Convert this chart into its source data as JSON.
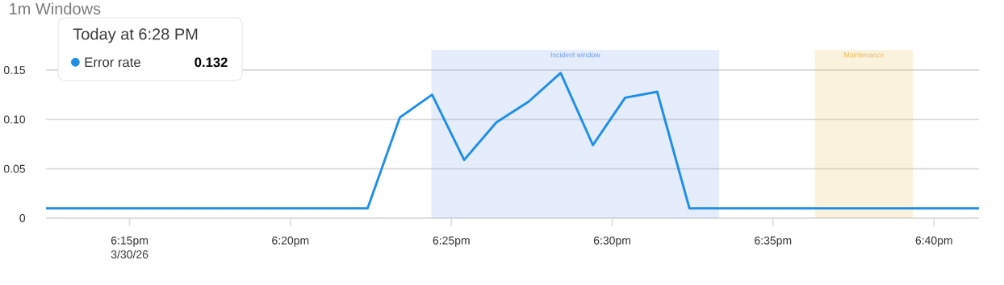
{
  "chart_data": {
    "type": "line",
    "title": "1m Windows",
    "series": [
      {
        "name": "Error rate",
        "color": "#1e8ee8",
        "x": [
          18.2067,
          18.3733,
          18.39,
          18.4067,
          18.4233,
          18.44,
          18.4567,
          18.4733,
          18.49,
          18.5067,
          18.5233,
          18.54,
          18.69
        ],
        "values": [
          0.01,
          0.01,
          0.102,
          0.125,
          0.059,
          0.097,
          0.118,
          0.147,
          0.074,
          0.122,
          0.128,
          0.01,
          0.01
        ]
      }
    ],
    "xlim": [
      18.2067,
      18.69
    ],
    "xticks": [
      {
        "value": 18.25,
        "label": "6:15pm"
      },
      {
        "value": 18.3333,
        "label": "6:20pm"
      },
      {
        "value": 18.4167,
        "label": "6:25pm"
      },
      {
        "value": 18.5,
        "label": "6:30pm"
      },
      {
        "value": 18.5833,
        "label": "6:35pm"
      },
      {
        "value": 18.6667,
        "label": "6:40pm"
      }
    ],
    "ylim": [
      0,
      0.15
    ],
    "yticks": [
      0,
      0.05,
      {
        "value": 0.1,
        "label": "0.10"
      },
      0.15
    ],
    "grid": "y",
    "legend": "top left",
    "line_style": "solid",
    "bands": [
      {
        "axis": "x",
        "from": 18.4063,
        "to": 18.5554,
        "label": "Incident window",
        "color": "#6f9cf0"
      },
      {
        "axis": "x",
        "from": 18.605,
        "to": 18.6558,
        "label": "Maintenance",
        "color": "#e8b84a"
      }
    ],
    "annotations": [
      "3/30/26",
      "Today at 6:28 PM",
      "0.132"
    ]
  }
}
